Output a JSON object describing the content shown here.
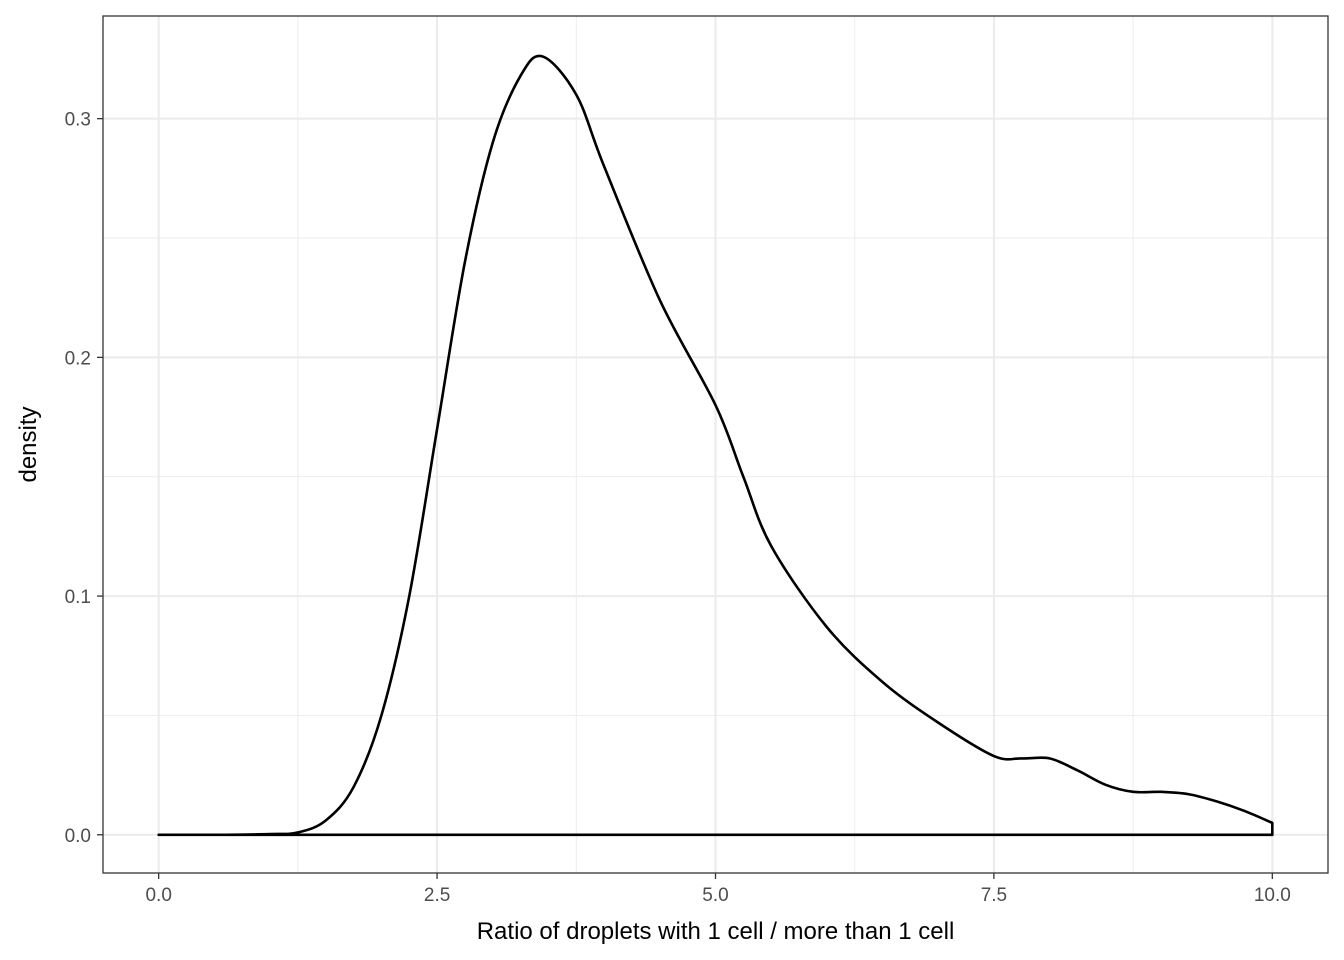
{
  "chart_data": {
    "type": "area",
    "title": "",
    "xlabel": "Ratio of droplets with 1 cell / more than 1 cell",
    "ylabel": "density",
    "xlim": [
      -0.5,
      10.5
    ],
    "ylim": [
      -0.016,
      0.343
    ],
    "x_ticks": [
      0.0,
      2.5,
      5.0,
      7.5,
      10.0
    ],
    "x_tick_labels": [
      "0.0",
      "2.5",
      "5.0",
      "7.5",
      "10.0"
    ],
    "y_ticks": [
      0.0,
      0.1,
      0.2,
      0.3
    ],
    "y_tick_labels": [
      "0.0",
      "0.1",
      "0.2",
      "0.3"
    ],
    "grid": true,
    "theme": "bw",
    "colors": {
      "line": "#000000",
      "grid": "#ebebeb",
      "panel_border": "#333333"
    },
    "series": [
      {
        "x": [
          0.0,
          0.5,
          1.0,
          1.25,
          1.5,
          1.75,
          2.0,
          2.25,
          2.5,
          2.75,
          3.0,
          3.25,
          3.45,
          3.75,
          4.0,
          4.5,
          5.0,
          5.25,
          5.5,
          6.0,
          6.5,
          7.0,
          7.5,
          7.75,
          8.0,
          8.25,
          8.5,
          8.75,
          9.0,
          9.25,
          9.5,
          9.75,
          10.0
        ],
        "y": [
          0.0,
          0.0,
          0.0003,
          0.001,
          0.006,
          0.02,
          0.05,
          0.1,
          0.17,
          0.24,
          0.29,
          0.318,
          0.326,
          0.31,
          0.28,
          0.224,
          0.18,
          0.15,
          0.121,
          0.087,
          0.064,
          0.047,
          0.033,
          0.032,
          0.032,
          0.027,
          0.021,
          0.018,
          0.018,
          0.017,
          0.014,
          0.01,
          0.005
        ]
      }
    ]
  }
}
